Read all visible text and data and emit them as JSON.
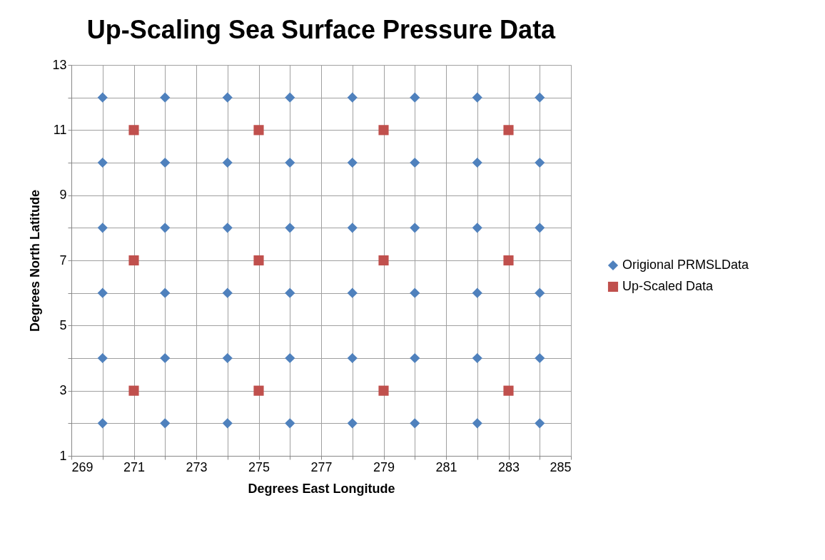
{
  "chart_data": {
    "type": "scatter",
    "title": "Up-Scaling Sea Surface Pressure Data",
    "xlabel": "Degrees East Longitude",
    "ylabel": "Degrees North Latitude",
    "series": [
      {
        "name": "Origional PRMSLData",
        "color": "#4f81bd",
        "marker": "diamond",
        "x": [
          270,
          272,
          274,
          276,
          278,
          280,
          282,
          284,
          270,
          272,
          274,
          276,
          278,
          280,
          282,
          284,
          270,
          272,
          274,
          276,
          278,
          280,
          282,
          284,
          270,
          272,
          274,
          276,
          278,
          280,
          282,
          284,
          270,
          272,
          274,
          276,
          278,
          280,
          282,
          284,
          270,
          272,
          274,
          276,
          278,
          280,
          282,
          284
        ],
        "values": [
          12,
          12,
          12,
          12,
          12,
          12,
          12,
          12,
          10,
          10,
          10,
          10,
          10,
          10,
          10,
          10,
          8,
          8,
          8,
          8,
          8,
          8,
          8,
          8,
          6,
          6,
          6,
          6,
          6,
          6,
          6,
          6,
          4,
          4,
          4,
          4,
          4,
          4,
          4,
          4,
          2,
          2,
          2,
          2,
          2,
          2,
          2,
          2
        ]
      },
      {
        "name": "Up-Scaled Data",
        "color": "#c0504d",
        "marker": "square",
        "x": [
          271,
          275,
          279,
          283,
          271,
          275,
          279,
          283,
          271,
          275,
          279,
          283
        ],
        "values": [
          11,
          11,
          11,
          11,
          7,
          7,
          7,
          7,
          3,
          3,
          3,
          3
        ]
      }
    ],
    "xlim": [
      269,
      285
    ],
    "xticks": [
      269,
      {
        "value": 270,
        "label": null
      },
      271,
      {
        "value": 272,
        "label": null
      },
      273,
      {
        "value": 274,
        "label": null
      },
      275,
      {
        "value": 276,
        "label": null
      },
      277,
      {
        "value": 278,
        "label": null
      },
      279,
      {
        "value": 280,
        "label": null
      },
      281,
      {
        "value": 282,
        "label": null
      },
      283,
      {
        "value": 284,
        "label": null
      },
      285
    ],
    "ylim": [
      1,
      13
    ],
    "yticks": [
      1,
      {
        "value": 2,
        "label": null
      },
      3,
      {
        "value": 4,
        "label": null
      },
      5,
      {
        "value": 6,
        "label": null
      },
      7,
      {
        "value": 8,
        "label": null
      },
      9,
      {
        "value": 10,
        "label": null
      },
      11,
      {
        "value": 12,
        "label": null
      },
      13
    ],
    "grid": true,
    "legend": "right"
  }
}
